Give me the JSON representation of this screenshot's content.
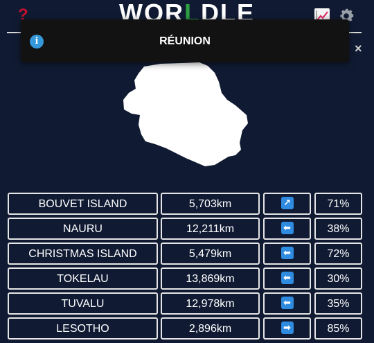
{
  "header": {
    "help_icon": "?",
    "logo_prefix": "WOR",
    "logo_highlight": "L",
    "logo_suffix": "DLE"
  },
  "toast": {
    "message": "RÉUNION",
    "info_icon": "i",
    "close_icon": "×"
  },
  "icons": {
    "help": "question-mark-icon",
    "stats": "chart-icon",
    "settings": "gear-icon",
    "info": "info-icon",
    "close": "close-icon"
  },
  "colors": {
    "background": "#101b33",
    "help": "#c8102e",
    "logo_highlight": "#2ea043",
    "info": "#3498db",
    "arrow": "#2f8be0"
  },
  "guesses": [
    {
      "country": "BOUVET ISLAND",
      "distance": "5,703km",
      "direction": "↗",
      "direction_name": "north-east-arrow-icon",
      "proximity": "71%"
    },
    {
      "country": "NAURU",
      "distance": "12,211km",
      "direction": "⬅",
      "direction_name": "west-arrow-icon",
      "proximity": "38%"
    },
    {
      "country": "CHRISTMAS ISLAND",
      "distance": "5,479km",
      "direction": "⬅",
      "direction_name": "west-arrow-icon",
      "proximity": "72%"
    },
    {
      "country": "TOKELAU",
      "distance": "13,869km",
      "direction": "⬅",
      "direction_name": "west-arrow-icon",
      "proximity": "30%"
    },
    {
      "country": "TUVALU",
      "distance": "12,978km",
      "direction": "⬅",
      "direction_name": "west-arrow-icon",
      "proximity": "35%"
    },
    {
      "country": "LESOTHO",
      "distance": "2,896km",
      "direction": "➡",
      "direction_name": "east-arrow-icon",
      "proximity": "85%"
    }
  ]
}
